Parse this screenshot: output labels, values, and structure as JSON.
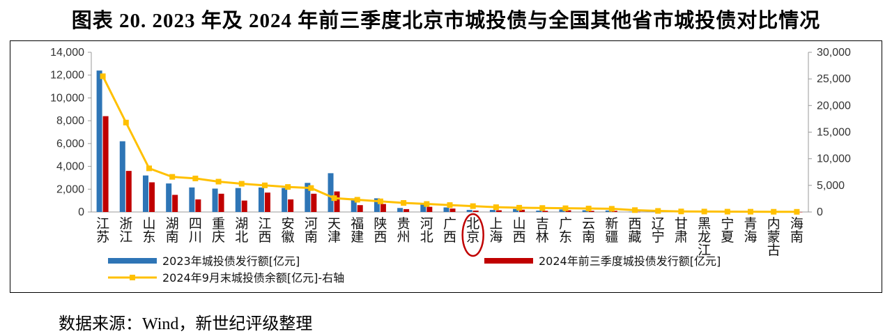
{
  "title": "图表 20. 2023 年及 2024 年前三季度北京市城投债与全国其他省市城投债对比情况",
  "source": "数据来源：Wind，新世纪评级整理",
  "colors": {
    "series1": "#2e75b6",
    "series2": "#c00000",
    "series3": "#ffc000",
    "highlight": "#c00000",
    "axis": "#999999"
  },
  "chart_data": {
    "type": "bar",
    "categories": [
      "江苏",
      "浙江",
      "山东",
      "湖南",
      "四川",
      "重庆",
      "湖北",
      "江西",
      "安徽",
      "河南",
      "天津",
      "福建",
      "陕西",
      "贵州",
      "河北",
      "广西",
      "北京",
      "上海",
      "山西",
      "吉林",
      "广东",
      "云南",
      "新疆",
      "西藏",
      "辽宁",
      "甘肃",
      "黑龙江",
      "宁夏",
      "青海",
      "内蒙古",
      "海南"
    ],
    "highlight_category": "北京",
    "ylim_left": [
      0,
      14000
    ],
    "yticks_left": [
      "0",
      "2,000",
      "4,000",
      "6,000",
      "8,000",
      "10,000",
      "12,000",
      "14,000"
    ],
    "ylim_right": [
      0,
      30000
    ],
    "yticks_right": [
      "0",
      "5,000",
      "10,000",
      "15,000",
      "20,000",
      "25,000",
      "30,000"
    ],
    "legend_placement": "bottom",
    "series": [
      {
        "name": "2023年城投债发行额[亿元]",
        "type": "bar",
        "axis": "left",
        "values": [
          12400,
          6200,
          3200,
          2500,
          2150,
          2050,
          2100,
          2150,
          2100,
          2550,
          3400,
          1200,
          1200,
          350,
          650,
          400,
          180,
          180,
          260,
          120,
          220,
          150,
          130,
          20,
          40,
          20,
          20,
          15,
          10,
          15,
          10
        ]
      },
      {
        "name": "2024年前三季度城投债发行额[亿元]",
        "type": "bar",
        "axis": "left",
        "values": [
          8400,
          3600,
          2600,
          1500,
          1100,
          1600,
          1000,
          1700,
          1100,
          1600,
          1800,
          600,
          700,
          250,
          450,
          300,
          120,
          150,
          200,
          100,
          150,
          100,
          100,
          15,
          30,
          15,
          15,
          10,
          8,
          10,
          5
        ]
      },
      {
        "name": "2024年9月末城投债余额[亿元]-右轴",
        "type": "line",
        "axis": "right",
        "values": [
          25500,
          16800,
          8200,
          6600,
          6300,
          5700,
          5300,
          5000,
          4700,
          4500,
          2600,
          2300,
          2000,
          1700,
          1500,
          1300,
          1100,
          900,
          800,
          750,
          700,
          650,
          600,
          350,
          200,
          100,
          80,
          60,
          50,
          40,
          30
        ]
      }
    ]
  }
}
